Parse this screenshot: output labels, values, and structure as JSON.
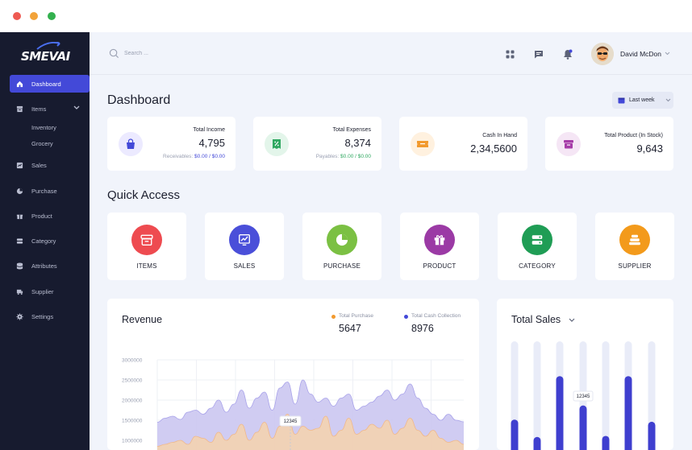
{
  "window": {
    "controls": [
      "close",
      "minimize",
      "maximize"
    ]
  },
  "brand": {
    "logo_text": "SMEVAI",
    "accent": "#4349d8",
    "sidebar_bg": "#171b2f"
  },
  "sidebar": {
    "items": [
      {
        "label": "Dashboard",
        "icon": "home-icon",
        "active": true
      },
      {
        "label": "Items",
        "icon": "box-icon",
        "expanded": true,
        "children": [
          "Inventory",
          "Grocery"
        ]
      },
      {
        "label": "Sales",
        "icon": "sales-icon"
      },
      {
        "label": "Purchase",
        "icon": "pie-icon"
      },
      {
        "label": "Product",
        "icon": "gift-icon"
      },
      {
        "label": "Category",
        "icon": "category-icon"
      },
      {
        "label": "Attributes",
        "icon": "database-icon"
      },
      {
        "label": "Supplier",
        "icon": "truck-icon"
      },
      {
        "label": "Settings",
        "icon": "gear-icon"
      }
    ]
  },
  "topbar": {
    "search_placeholder": "Search ...",
    "icons": [
      "grid-icon",
      "chat-icon",
      "bell-icon"
    ],
    "user_name": "David McDon"
  },
  "page": {
    "title": "Dashboard",
    "range": "Last week"
  },
  "stats": [
    {
      "title": "Total Income",
      "value": "4,795",
      "sub_label": "Receivables:",
      "sub_value": "$0.00 / $0.00",
      "color": "#4349d8",
      "icon": "bag-icon"
    },
    {
      "title": "Total Expenses",
      "value": "8,374",
      "sub_label": "Payables:",
      "sub_value": "$0.00 / $0.00",
      "color": "#2fa860",
      "icon": "receipt-icon"
    },
    {
      "title": "Cash In Hand",
      "value": "2,34,5600",
      "color": "#f29a2e",
      "icon": "ticket-icon"
    },
    {
      "title": "Total Product (In Stock)",
      "value": "9,643",
      "color": "#a63ca8",
      "icon": "archive-icon"
    }
  ],
  "quick_access": {
    "title": "Quick Access",
    "items": [
      {
        "label": "ITEMS",
        "color": "#ee4b50",
        "icon": "archive-icon"
      },
      {
        "label": "SALES",
        "color": "#4a4fd9",
        "icon": "chart-up-icon"
      },
      {
        "label": "PURCHASE",
        "color": "#7bc043",
        "icon": "pie-icon"
      },
      {
        "label": "PRODUCT",
        "color": "#9b3aa5",
        "icon": "gift-icon"
      },
      {
        "label": "CATEGORY",
        "color": "#1f9d55",
        "icon": "category-icon"
      },
      {
        "label": "SUPPLIER",
        "color": "#f39a1b",
        "icon": "stack-icon"
      }
    ]
  },
  "revenue": {
    "title": "Revenue",
    "legend": [
      {
        "label": "Total Purchase",
        "value": "5647",
        "color": "#f29a2e"
      },
      {
        "label": "Total Cash Collection",
        "value": "8976",
        "color": "#4349d8"
      }
    ],
    "tooltip": "12345"
  },
  "total_sales": {
    "title": "Total Sales",
    "tooltip": "12345"
  },
  "chart_data": [
    {
      "type": "area",
      "title": "Revenue",
      "ylim": [
        0,
        3000000
      ],
      "y_ticks": [
        "1000000",
        "1500000",
        "2000000",
        "2500000",
        "3000000"
      ],
      "series": [
        {
          "name": "Total Cash Collection",
          "values": [
            1450000,
            1550000,
            1600000,
            1520000,
            1700000,
            1750000,
            1650000,
            1800000,
            2000000,
            1700000,
            1900000,
            2250000,
            1800000,
            2050000,
            2200000,
            1750000,
            2300000,
            2450000,
            1900000,
            2500000,
            2150000,
            1950000,
            2050000,
            1850000,
            2050000,
            2150000,
            1750000,
            1850000,
            1950000,
            2100000,
            2250000,
            2000000,
            2150000,
            2400000,
            2050000,
            1800000,
            1650000,
            1500000,
            1650000,
            1500000,
            1460000
          ]
        },
        {
          "name": "Total Purchase",
          "values": [
            850000,
            900000,
            950000,
            1000000,
            900000,
            1100000,
            1050000,
            950000,
            1200000,
            1000000,
            1150000,
            1400000,
            1000000,
            1200000,
            1450000,
            1050000,
            1350000,
            1650000,
            1150000,
            1350000,
            1250000,
            1300000,
            1600000,
            1100000,
            1250000,
            1550000,
            1150000,
            1250000,
            1400000,
            1300000,
            1500000,
            1150000,
            1300000,
            1550000,
            1250000,
            1100000,
            1250000,
            1050000,
            950000,
            1000000,
            900000
          ]
        }
      ]
    },
    {
      "type": "bar",
      "title": "Total Sales",
      "values": [
        0.28,
        0.12,
        0.68,
        0.41,
        0.13,
        0.68,
        0.26
      ],
      "max": 1.0
    }
  ]
}
